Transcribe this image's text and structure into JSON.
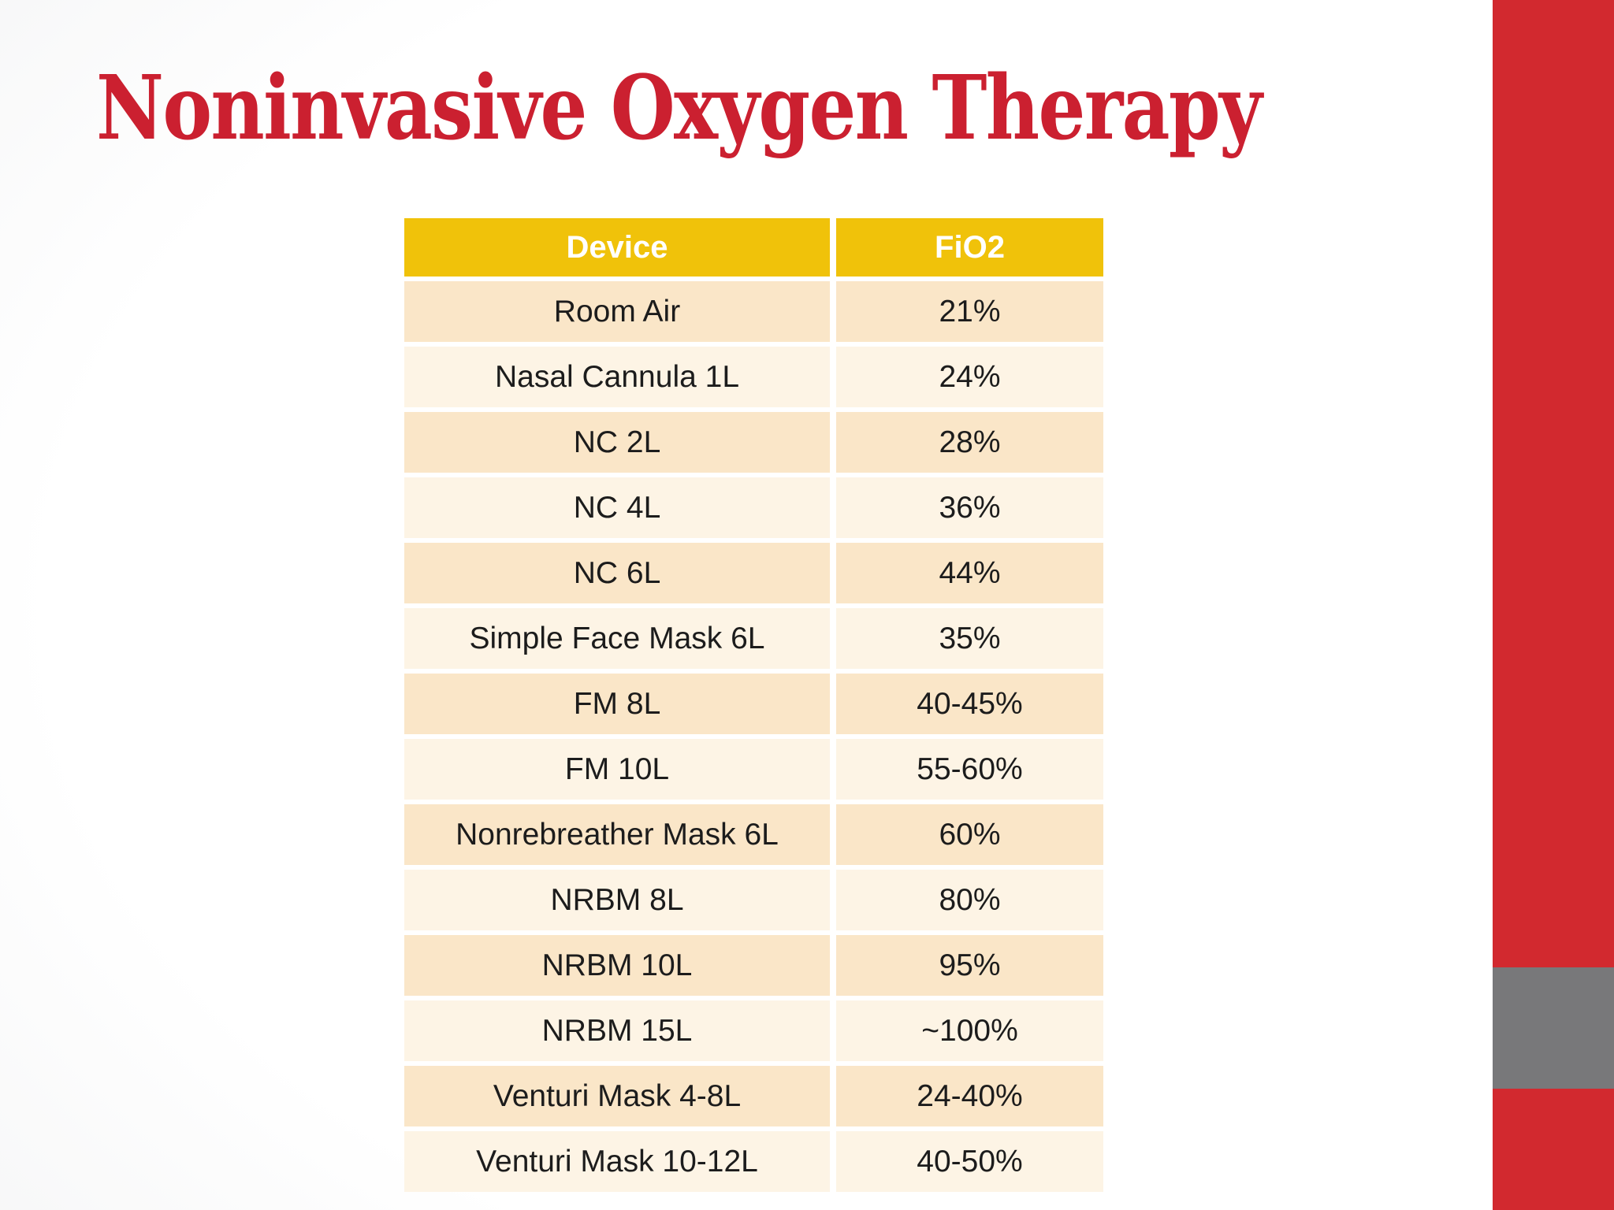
{
  "slide": {
    "title": "Noninvasive Oxygen Therapy"
  },
  "table": {
    "headers": [
      "Device",
      "FiO2"
    ],
    "rows": [
      [
        "Room Air",
        "21%"
      ],
      [
        "Nasal Cannula 1L",
        "24%"
      ],
      [
        "NC 2L",
        "28%"
      ],
      [
        "NC 4L",
        "36%"
      ],
      [
        "NC 6L",
        "44%"
      ],
      [
        "Simple Face Mask 6L",
        "35%"
      ],
      [
        "FM 8L",
        "40-45%"
      ],
      [
        "FM 10L",
        "55-60%"
      ],
      [
        "Nonrebreather Mask 6L",
        "60%"
      ],
      [
        "NRBM 8L",
        "80%"
      ],
      [
        "NRBM 10L",
        "95%"
      ],
      [
        "NRBM 15L",
        "~100%"
      ],
      [
        "Venturi Mask 4-8L",
        "24-40%"
      ],
      [
        "Venturi Mask 10-12L",
        "40-50%"
      ]
    ]
  },
  "colors": {
    "title_red": "#CB2030",
    "header_gold": "#F0C20A",
    "row_dark": "#FAE6C8",
    "row_light": "#FDF4E5",
    "sidebar_red": "#D2292F",
    "sidebar_gray": "#78787A",
    "header_text": "#FFFFFF",
    "cell_text": "#1C1C1C"
  }
}
